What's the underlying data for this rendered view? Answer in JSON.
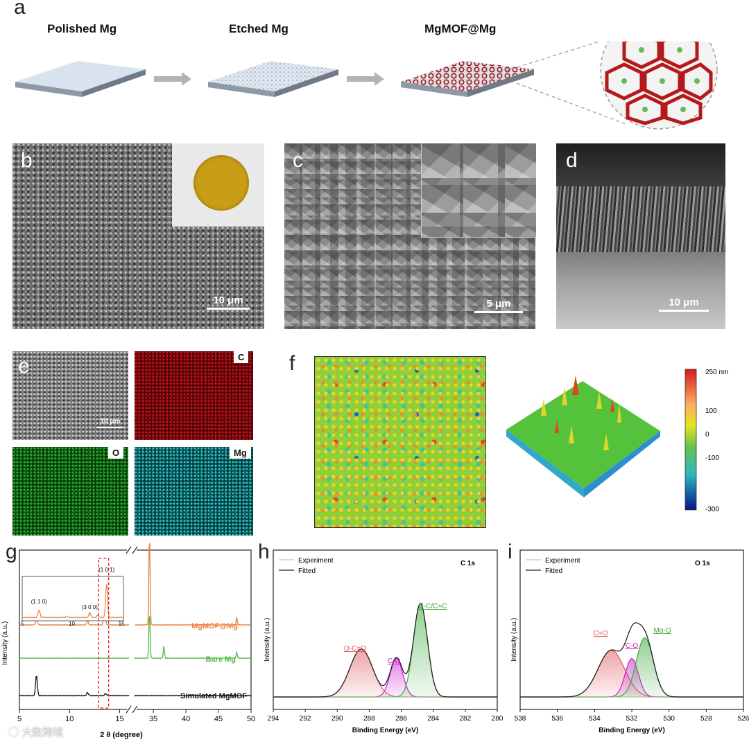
{
  "panels": {
    "a": {
      "label": "a",
      "steps": [
        "Polished Mg",
        "Etched Mg",
        "MgMOF@Mg"
      ]
    },
    "b": {
      "label": "b",
      "scale": "10 μm"
    },
    "c": {
      "label": "c",
      "scale": "5 μm"
    },
    "d": {
      "label": "d",
      "scale": "10 μm"
    },
    "e": {
      "label": "e",
      "scale": "10 μm",
      "maps": [
        "C",
        "O",
        "Mg"
      ],
      "colors": {
        "C": "#b00d12",
        "O": "#1f9a24",
        "Mg": "#1fb2b6"
      }
    },
    "f": {
      "label": "f",
      "colorbar": {
        "unit": "250 nm",
        "ticks": [
          "100",
          "0",
          "-100",
          "-300"
        ]
      }
    },
    "g": {
      "label": "g"
    },
    "h": {
      "label": "h"
    },
    "i": {
      "label": "i"
    }
  },
  "chart_data": [
    {
      "id": "g",
      "type": "line",
      "xlabel": "2 θ (degree)",
      "ylabel": "Intensity (a.u.)",
      "xticks_left": [
        "5",
        "10",
        "15"
      ],
      "xticks_right": [
        "35",
        "40",
        "45",
        "50"
      ],
      "xlim_left": [
        5,
        16
      ],
      "xlim_right": [
        32,
        50
      ],
      "series": [
        {
          "name": "MgMOF@Mg",
          "color": "#e8823a",
          "peaks": [
            [
              6.7,
              0.35
            ],
            [
              11.8,
              0.2
            ],
            [
              13.5,
              1.0
            ],
            [
              34.4,
              5.0
            ],
            [
              47.8,
              0.4
            ]
          ]
        },
        {
          "name": "Bare Mg",
          "color": "#55b64a",
          "peaks": [
            [
              34.4,
              2.4
            ],
            [
              36.6,
              0.6
            ],
            [
              47.8,
              0.3
            ]
          ]
        },
        {
          "name": "Simulated MgMOF",
          "color": "#111111",
          "peaks": [
            [
              6.7,
              1.0
            ],
            [
              11.8,
              0.15
            ],
            [
              13.6,
              0.1
            ],
            [
              34.4,
              0.0
            ]
          ]
        }
      ],
      "inset": {
        "xticks": [
          "5",
          "10",
          "15"
        ],
        "annotations": [
          "(1 1 0)",
          "(3 0 0)",
          "(1 0 1)"
        ]
      },
      "highlight_box_x": [
        12.9,
        13.9
      ]
    },
    {
      "id": "h",
      "type": "line",
      "title": "C 1s",
      "xlabel": "Binding Energy (eV)",
      "ylabel": "Intensity (a.u.)",
      "xlim": [
        294,
        280
      ],
      "xticks": [
        "294",
        "292",
        "290",
        "288",
        "286",
        "284",
        "282",
        "280"
      ],
      "legend": [
        "Experiment",
        "Fitted"
      ],
      "components": [
        {
          "label": "O-C=O",
          "center": 288.5,
          "height": 0.42,
          "width": 1.0,
          "color": "#e05a5a"
        },
        {
          "label": "C-O",
          "center": 286.3,
          "height": 0.34,
          "width": 0.55,
          "color": "#c81ec8"
        },
        {
          "label": "C-C/C=C",
          "center": 284.8,
          "height": 0.82,
          "width": 0.62,
          "color": "#3aa83a"
        }
      ]
    },
    {
      "id": "i",
      "type": "line",
      "title": "O 1s",
      "xlabel": "Binding Energy (eV)",
      "ylabel": "Intensity (a.u.)",
      "xlim": [
        538,
        526
      ],
      "xticks": [
        "538",
        "536",
        "534",
        "532",
        "530",
        "528",
        "526"
      ],
      "legend": [
        "Experiment",
        "Fitted"
      ],
      "components": [
        {
          "label": "C=O",
          "center": 533.1,
          "height": 0.45,
          "width": 1.0,
          "color": "#e05a5a"
        },
        {
          "label": "C-O",
          "center": 532.0,
          "height": 0.37,
          "width": 0.5,
          "color": "#c81ec8"
        },
        {
          "label": "Mg-O",
          "center": 531.3,
          "height": 0.57,
          "width": 0.65,
          "color": "#3aa83a"
        }
      ]
    }
  ],
  "watermark": "大数跨境"
}
